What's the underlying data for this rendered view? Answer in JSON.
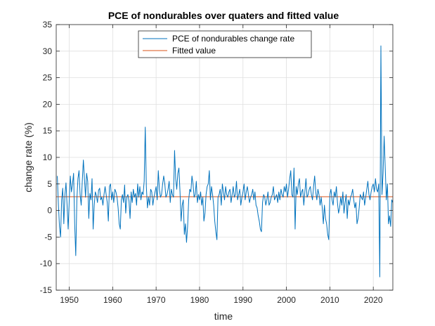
{
  "chart_data": {
    "type": "line",
    "title": "PCE of nondurables over quaters and fitted value",
    "xlabel": "time",
    "ylabel": "change rate (%)",
    "xlim": [
      1947,
      2024.5
    ],
    "ylim": [
      -15,
      35
    ],
    "xticks": [
      1950,
      1960,
      1970,
      1980,
      1990,
      2000,
      2010,
      2020
    ],
    "yticks": [
      -15,
      -10,
      -5,
      0,
      5,
      10,
      15,
      20,
      25,
      30,
      35
    ],
    "grid": true,
    "legend_position": "top-center",
    "series": [
      {
        "name": "PCE of nondurables change rate",
        "color": "#0072BD",
        "x_start": 1947.25,
        "x_step": 0.25,
        "values": [
          6.5,
          1.2,
          -3.0,
          -5.0,
          2.0,
          4.2,
          -2.5,
          3.0,
          5.2,
          1.0,
          -3.5,
          2.0,
          6.5,
          3.5,
          5.0,
          7.0,
          -2.5,
          -8.5,
          2.0,
          6.0,
          7.5,
          3.0,
          1.0,
          5.5,
          9.5,
          6.0,
          2.5,
          7.0,
          5.5,
          -1.5,
          3.2,
          2.0,
          6.0,
          -3.5,
          1.0,
          3.5,
          2.8,
          1.5,
          3.8,
          4.2,
          2.0,
          2.5,
          1.0,
          3.0,
          4.5,
          3.0,
          1.5,
          -2.0,
          4.5,
          5.0,
          2.0,
          3.5,
          1.5,
          4.0,
          3.5,
          2.5,
          0.5,
          -2.5,
          -3.5,
          2.0,
          3.0,
          1.5,
          4.8,
          -0.5,
          2.5,
          3.0,
          1.8,
          -1.5,
          3.5,
          1.5,
          4.0,
          2.5,
          3.2,
          1.0,
          5.0,
          2.5,
          4.5,
          2.0,
          3.5,
          3.0,
          5.5,
          15.7,
          4.5,
          0.5,
          2.5,
          1.0,
          4.0,
          3.5,
          1.0,
          2.5,
          3.5,
          4.5,
          2.0,
          7.5,
          4.0,
          2.5,
          3.0,
          5.0,
          6.5,
          5.0,
          2.5,
          3.0,
          4.0,
          5.5,
          1.5,
          4.0,
          3.0,
          2.5,
          11.3,
          6.0,
          4.0,
          7.0,
          8.0,
          3.5,
          -2.0,
          1.0,
          2.0,
          -4.5,
          -2.5,
          -6.0,
          -3.0,
          2.0,
          4.0,
          3.5,
          6.5,
          5.0,
          2.5,
          3.0,
          5.5,
          1.5,
          3.0,
          2.0,
          3.5,
          1.0,
          2.5,
          -2.0,
          -0.5,
          3.0,
          4.5,
          5.0,
          7.5,
          2.0,
          4.5,
          3.0,
          1.0,
          -2.0,
          -4.0,
          -5.5,
          2.5,
          3.0,
          4.0,
          1.0,
          5.0,
          3.5,
          2.0,
          4.5,
          3.0,
          2.5,
          3.5,
          4.0,
          1.5,
          3.0,
          4.5,
          2.5,
          3.0,
          5.5,
          2.0,
          3.0,
          4.0,
          1.0,
          2.5,
          3.5,
          5.0,
          2.0,
          3.5,
          4.5,
          3.0,
          1.5,
          2.5,
          3.0,
          4.0,
          2.0,
          3.5,
          1.0,
          0.5,
          -1.0,
          -2.0,
          -3.5,
          -4.0,
          1.5,
          3.0,
          2.5,
          1.0,
          2.0,
          3.5,
          1.0,
          1.5,
          2.5,
          3.0,
          4.5,
          2.0,
          2.5,
          3.0,
          1.5,
          3.5,
          2.0,
          4.0,
          3.0,
          2.5,
          4.5,
          3.5,
          5.0,
          2.5,
          4.0,
          6.0,
          7.5,
          3.0,
          2.5,
          8.0,
          -3.5,
          4.5,
          3.0,
          5.0,
          6.0,
          2.5,
          3.5,
          4.0,
          1.0,
          3.5,
          6.0,
          2.5,
          3.0,
          4.0,
          4.5,
          3.0,
          2.0,
          4.5,
          6.5,
          3.5,
          2.0,
          4.0,
          3.0,
          1.0,
          2.5,
          0.5,
          -2.5,
          1.0,
          -1.5,
          -2.5,
          -4.5,
          -5.5,
          3.0,
          4.0,
          2.0,
          1.0,
          3.5,
          2.5,
          4.5,
          1.5,
          -0.5,
          0.5,
          2.5,
          1.0,
          3.5,
          -0.5,
          1.5,
          3.0,
          -1.5,
          2.0,
          1.0,
          2.5,
          3.0,
          4.0,
          2.0,
          0.5,
          1.5,
          -2.5,
          -1.5,
          0.5,
          3.0,
          2.5,
          2.0,
          3.5,
          1.0,
          2.5,
          4.0,
          5.5,
          3.0,
          2.0,
          3.5,
          4.5,
          5.0,
          3.5,
          6.0,
          4.0,
          3.5,
          5.0,
          -12.5,
          31.0,
          3.0,
          7.0,
          14.0,
          8.0,
          2.0,
          5.0,
          -2.5,
          -1.0,
          -3.0,
          2.0,
          1.5,
          3.5,
          -0.5,
          1.5,
          4.5
        ]
      },
      {
        "name": "Fitted value",
        "color": "#D95319",
        "x": [
          1947,
          2024.5
        ],
        "values": [
          2.6,
          2.6
        ]
      }
    ]
  }
}
